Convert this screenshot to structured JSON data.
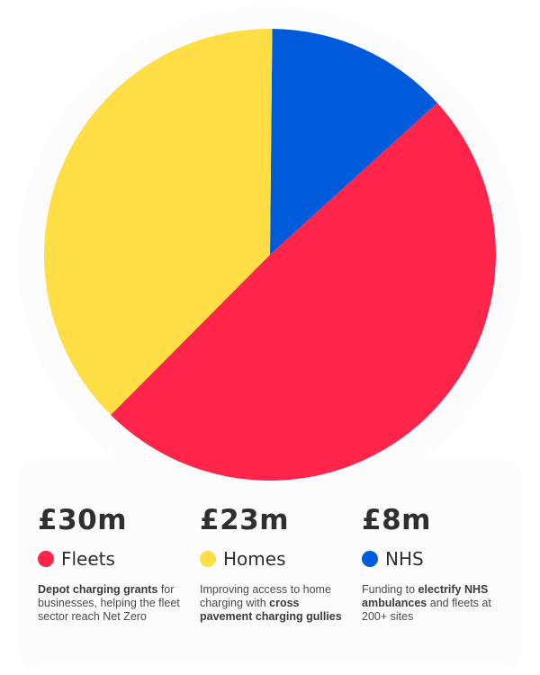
{
  "chart_data": {
    "type": "pie",
    "title": "",
    "unit": "£m",
    "slices": [
      {
        "name": "NHS",
        "value": 8,
        "color": "#005bdb"
      },
      {
        "name": "Fleets",
        "value": 30,
        "color": "#ff2449"
      },
      {
        "name": "Homes",
        "value": 23,
        "color": "#ffdd44"
      }
    ],
    "legend_placement": "bottom"
  },
  "legend": {
    "fleets": {
      "amount": "£30m",
      "label": "Fleets",
      "color": "#ff2449",
      "desc_bold_1": "Depot charging grants",
      "desc_text_1": " for businesses, helping the fleet sector reach Net Zero"
    },
    "homes": {
      "amount": "£23m",
      "label": "Homes",
      "color": "#ffdd44",
      "desc_text_1": "Improving access to home charging with ",
      "desc_bold_1": "cross pavement charging gullies"
    },
    "nhs": {
      "amount": "£8m",
      "label": "NHS",
      "color": "#005bdb",
      "desc_text_1": "Funding to ",
      "desc_bold_1": "electrify NHS ambulances",
      "desc_text_2": " and fleets at 200+ sites"
    }
  }
}
